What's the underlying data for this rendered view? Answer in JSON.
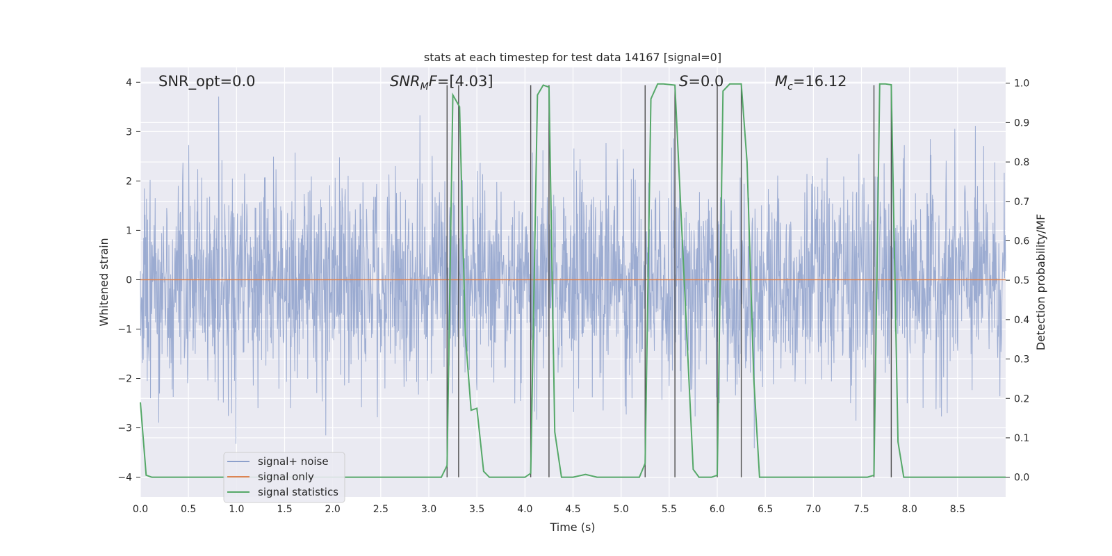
{
  "chart_data": {
    "type": "line",
    "title": "stats at each timestep for test data 14167 [signal=0]",
    "xlabel": "Time (s)",
    "ylabel": "Whitened strain",
    "y2label": "Detection probability/MF",
    "xlim": [
      0,
      9.0
    ],
    "ylim": [
      -4.4,
      4.3
    ],
    "y2lim": [
      -0.05,
      1.04
    ],
    "xticks": [
      0.0,
      0.5,
      1.0,
      1.5,
      2.0,
      2.5,
      3.0,
      3.5,
      4.0,
      4.5,
      5.0,
      5.5,
      6.0,
      6.5,
      7.0,
      7.5,
      8.0,
      8.5
    ],
    "xtick_labels": [
      "0.0",
      "0.5",
      "1.0",
      "1.5",
      "2.0",
      "2.5",
      "3.0",
      "3.5",
      "4.0",
      "4.5",
      "5.0",
      "5.5",
      "6.0",
      "6.5",
      "7.0",
      "7.5",
      "8.0",
      "8.5"
    ],
    "yticks": [
      -4,
      -3,
      -2,
      -1,
      0,
      1,
      2,
      3,
      4
    ],
    "ytick_labels": [
      "−4",
      "−3",
      "−2",
      "−1",
      "0",
      "1",
      "2",
      "3",
      "4"
    ],
    "y2ticks": [
      0.0,
      0.1,
      0.2,
      0.3,
      0.4,
      0.5,
      0.6,
      0.7,
      0.8,
      0.9,
      1.0
    ],
    "y2tick_labels": [
      "0.0",
      "0.1",
      "0.2",
      "0.3",
      "0.4",
      "0.5",
      "0.6",
      "0.7",
      "0.8",
      "0.9",
      "1.0"
    ],
    "grid": true,
    "legend_position": "lower-left",
    "annotations": [
      {
        "text": "SNR_opt=0.0",
        "x": 0.2,
        "y": 4.0
      },
      {
        "text": "SNR_MF=[4.03]",
        "x": 2.6,
        "y": 4.0
      },
      {
        "text": "S=0.0",
        "x": 5.6,
        "y": 4.0
      },
      {
        "text": "M_c=16.12",
        "x": 6.6,
        "y": 4.0
      }
    ],
    "series": [
      {
        "name": "signal+ noise",
        "color": "#8da0cb",
        "axis": "left",
        "kind": "noise",
        "x_range": [
          0,
          9.0
        ],
        "approx_amplitude": 1.6,
        "approx_peak": 3.9
      },
      {
        "name": "signal only",
        "color": "#dd8452",
        "axis": "left",
        "kind": "flat",
        "x": [
          0,
          9.0
        ],
        "y": [
          0,
          0
        ]
      },
      {
        "name": "signal statistics",
        "color": "#55a868",
        "axis": "right",
        "x": [
          0.0,
          0.06,
          0.12,
          3.13,
          3.19,
          3.25,
          3.32,
          3.38,
          3.44,
          3.5,
          3.57,
          3.63,
          4.0,
          4.06,
          4.13,
          4.19,
          4.25,
          4.31,
          4.38,
          4.44,
          4.5,
          4.63,
          4.75,
          5.19,
          5.25,
          5.31,
          5.38,
          5.44,
          5.56,
          5.75,
          5.81,
          5.94,
          6.0,
          6.06,
          6.13,
          6.25,
          6.31,
          6.38,
          6.44,
          7.56,
          7.63,
          7.69,
          7.75,
          7.81,
          7.88,
          7.94,
          9.0
        ],
        "y": [
          0.19,
          0.005,
          0.0,
          0.0,
          0.03,
          0.97,
          0.94,
          0.36,
          0.17,
          0.175,
          0.015,
          0.0,
          0.0,
          0.01,
          0.97,
          0.995,
          0.99,
          0.115,
          0.0,
          0.0,
          0.0,
          0.007,
          0.0,
          0.0,
          0.035,
          0.96,
          0.998,
          0.998,
          0.995,
          0.02,
          0.0,
          0.0,
          0.005,
          0.98,
          0.998,
          0.998,
          0.8,
          0.25,
          0.0,
          0.0,
          0.005,
          0.998,
          0.998,
          0.996,
          0.09,
          0.0,
          0.0
        ]
      }
    ],
    "vertical_lines": [
      3.19,
      3.31,
      4.06,
      4.25,
      5.25,
      5.56,
      6.0,
      6.25,
      7.63,
      7.81
    ]
  },
  "legend": {
    "items": [
      {
        "label": "signal+ noise",
        "color": "#8da0cb"
      },
      {
        "label": "signal only",
        "color": "#dd8452"
      },
      {
        "label": "signal statistics",
        "color": "#55a868"
      }
    ]
  }
}
